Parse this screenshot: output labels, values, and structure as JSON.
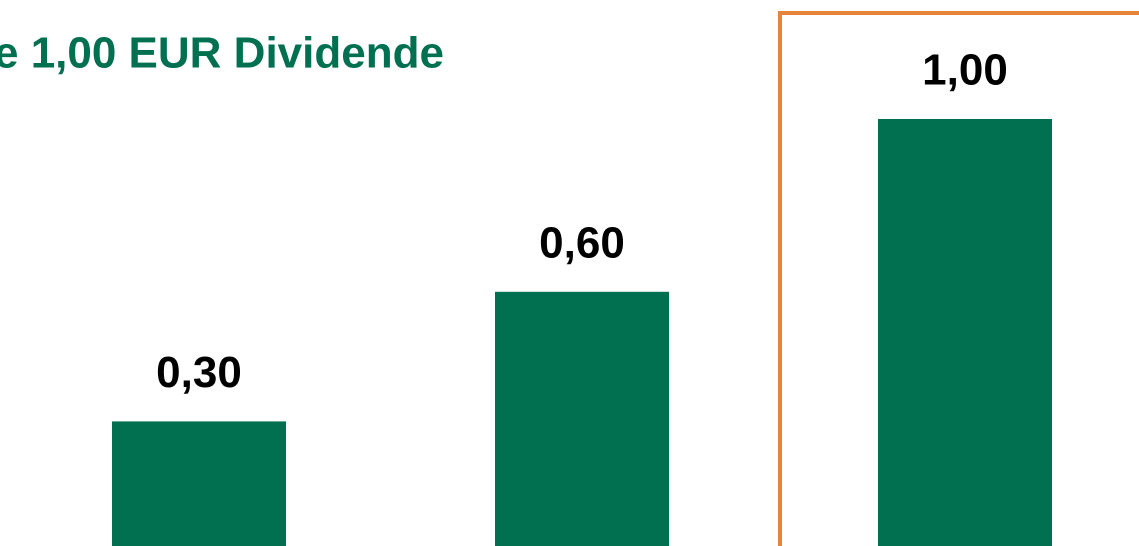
{
  "chart_data": {
    "type": "bar",
    "title": "e 1,00 EUR Dividende",
    "categories": [
      null,
      null,
      null
    ],
    "values": [
      0.3,
      0.6,
      1.0
    ],
    "value_labels": [
      "0,30",
      "0,60",
      "1,00"
    ],
    "color": "#007050"
  }
}
